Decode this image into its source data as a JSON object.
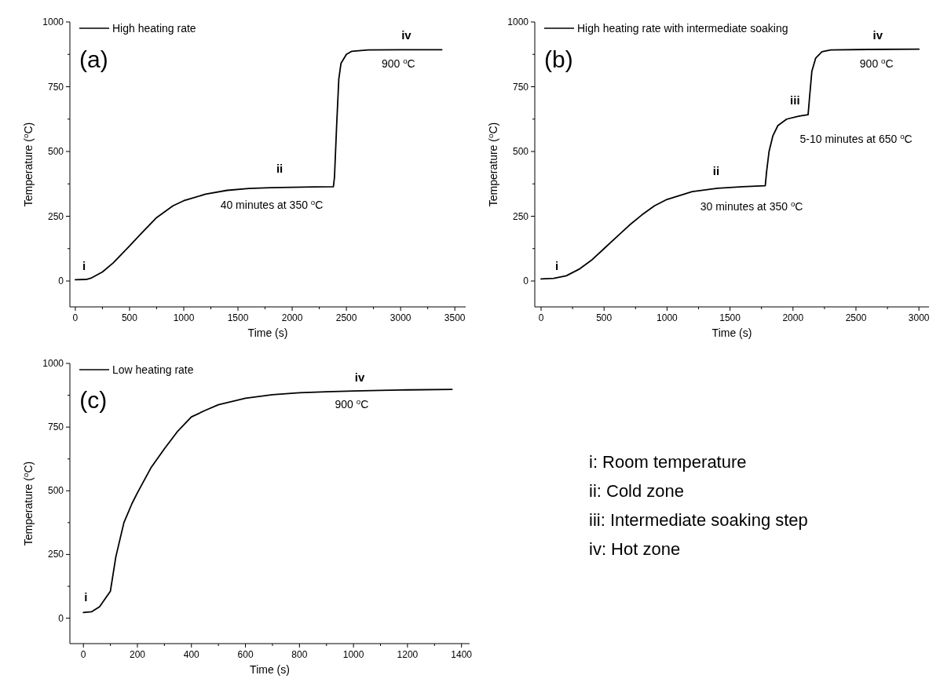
{
  "chart_data": [
    {
      "type": "line",
      "xlabel": "Time (s)",
      "ylabel": "Temperature ($^{o}$C)",
      "xlim": [
        -50,
        3600
      ],
      "ylim": [
        -100,
        1000
      ],
      "xticks": [
        0,
        {
          "value": 250,
          "label": null
        },
        500,
        {
          "value": 750,
          "label": null
        },
        1000,
        {
          "value": 1250,
          "label": null
        },
        1500,
        {
          "value": 1750,
          "label": null
        },
        2000,
        {
          "value": 2250,
          "label": null
        },
        2500,
        {
          "value": 2750,
          "label": null
        },
        3000,
        {
          "value": 3250,
          "label": null
        },
        3500
      ],
      "yticks": [
        0,
        {
          "value": 125,
          "label": null
        },
        250,
        {
          "value": 375,
          "label": null
        },
        500,
        {
          "value": 625,
          "label": null
        },
        750,
        {
          "value": 875,
          "label": null
        },
        1000
      ],
      "legend": "top left",
      "marker": "none",
      "line_style": "solid",
      "series": [
        {
          "name": "High heating rate",
          "color": "#000000",
          "x": [
            0,
            100,
            150,
            250,
            350,
            500,
            600,
            750,
            900,
            1000,
            1200,
            1400,
            1600,
            1800,
            2000,
            2200,
            2380,
            2390,
            2410,
            2430,
            2450,
            2500,
            2550,
            2700,
            3000,
            3380
          ],
          "values": [
            5,
            6,
            12,
            35,
            70,
            135,
            180,
            245,
            290,
            310,
            335,
            350,
            357,
            360,
            362,
            363,
            364,
            400,
            600,
            780,
            840,
            875,
            887,
            892,
            893,
            893
          ]
        }
      ],
      "annotations": [
        "(a)",
        "i",
        "ii",
        "40 minutes at 350 $^{o}$C",
        "iv",
        "900 $^{o}$C"
      ]
    },
    {
      "type": "line",
      "xlabel": "Time (s)",
      "ylabel": "Temperature ($^{o}$C)",
      "xlim": [
        -50,
        3080
      ],
      "ylim": [
        -100,
        1000
      ],
      "xticks": [
        0,
        {
          "value": 250,
          "label": null
        },
        500,
        {
          "value": 750,
          "label": null
        },
        1000,
        {
          "value": 1250,
          "label": null
        },
        1500,
        {
          "value": 1750,
          "label": null
        },
        2000,
        {
          "value": 2250,
          "label": null
        },
        2500,
        {
          "value": 2750,
          "label": null
        },
        3000
      ],
      "yticks": [
        0,
        {
          "value": 125,
          "label": null
        },
        250,
        {
          "value": 375,
          "label": null
        },
        500,
        {
          "value": 625,
          "label": null
        },
        750,
        {
          "value": 875,
          "label": null
        },
        1000
      ],
      "legend": "top left",
      "marker": "none",
      "line_style": "solid",
      "series": [
        {
          "name": "High heating rate with intermediate soaking",
          "color": "#000000",
          "x": [
            0,
            100,
            200,
            300,
            400,
            500,
            600,
            700,
            800,
            900,
            1000,
            1200,
            1400,
            1600,
            1780,
            1790,
            1810,
            1840,
            1880,
            1950,
            2050,
            2120,
            2130,
            2150,
            2180,
            2230,
            2300,
            2600,
            3000
          ],
          "values": [
            8,
            10,
            20,
            45,
            80,
            125,
            170,
            215,
            255,
            290,
            315,
            345,
            358,
            364,
            368,
            420,
            500,
            560,
            600,
            625,
            637,
            642,
            700,
            810,
            860,
            885,
            892,
            894,
            895
          ]
        }
      ],
      "annotations": [
        "(b)",
        "i",
        "ii",
        "30 minutes at 350 $^{o}$C",
        "iii",
        "5-10 minutes at 650 $^{o}$C",
        "iv",
        "900 $^{o}$C"
      ]
    },
    {
      "type": "line",
      "xlabel": "Time (s)",
      "ylabel": "Temperature ($^{o}$C)",
      "xlim": [
        -50,
        1430
      ],
      "ylim": [
        -100,
        1000
      ],
      "xticks": [
        0,
        {
          "value": 100,
          "label": null
        },
        200,
        {
          "value": 300,
          "label": null
        },
        400,
        {
          "value": 500,
          "label": null
        },
        600,
        {
          "value": 700,
          "label": null
        },
        800,
        {
          "value": 900,
          "label": null
        },
        1000,
        {
          "value": 1100,
          "label": null
        },
        1200,
        {
          "value": 1300,
          "label": null
        },
        1400
      ],
      "yticks": [
        0,
        {
          "value": 125,
          "label": null
        },
        250,
        {
          "value": 375,
          "label": null
        },
        500,
        {
          "value": 625,
          "label": null
        },
        750,
        {
          "value": 875,
          "label": null
        },
        1000
      ],
      "legend": "top left",
      "marker": "none",
      "line_style": "solid",
      "series": [
        {
          "name": "Low heating rate",
          "color": "#000000",
          "x": [
            0,
            30,
            60,
            100,
            120,
            150,
            180,
            200,
            250,
            300,
            350,
            400,
            450,
            500,
            600,
            700,
            800,
            900,
            1000,
            1100,
            1200,
            1365
          ],
          "values": [
            22,
            25,
            45,
            106,
            240,
            375,
            450,
            492,
            590,
            665,
            735,
            790,
            815,
            838,
            863,
            877,
            885,
            889,
            892,
            894,
            896,
            898
          ]
        }
      ],
      "annotations": [
        "(c)",
        "i",
        "iv",
        "900 $^{o}$C"
      ]
    },
    {
      "type": "other",
      "annotations": [
        "i: Room temperature",
        "ii: Cold zone",
        "iii: Intermediate soaking step",
        "iv: Hot zone"
      ]
    }
  ]
}
